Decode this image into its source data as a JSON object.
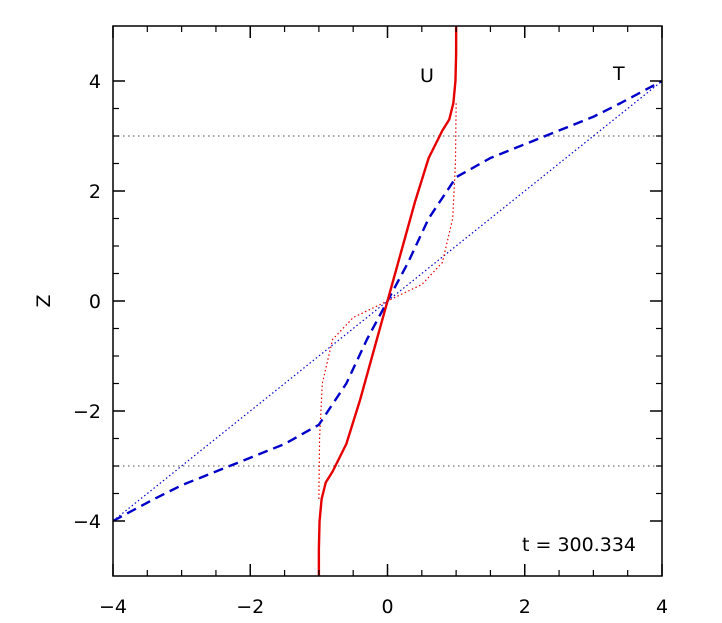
{
  "chart_data": {
    "type": "line",
    "title": "",
    "xlabel": "",
    "ylabel": "Z",
    "xlim": [
      -4,
      4
    ],
    "ylim": [
      -5,
      5
    ],
    "x_ticks": [
      "−4",
      "−2",
      "0",
      "2",
      "4"
    ],
    "y_ticks": [
      "−4",
      "−2",
      "0",
      "2",
      "4"
    ],
    "grid": false,
    "legend": "none",
    "annotations": {
      "U": "U",
      "T": "T",
      "time": "t = 300.334"
    },
    "reference_lines": [
      {
        "name": "",
        "orientation": "horizontal",
        "y": 3,
        "style": "dotted",
        "color": "#888888"
      },
      {
        "name": "",
        "orientation": "horizontal",
        "y": -3,
        "style": "dotted",
        "color": "#888888"
      }
    ],
    "series": [
      {
        "name": "U",
        "style": "solid",
        "color": "#e60000",
        "points": [
          [
            -1.0,
            -5.0
          ],
          [
            -1.0,
            -4.5
          ],
          [
            -0.99,
            -4.0
          ],
          [
            -0.96,
            -3.6
          ],
          [
            -0.9,
            -3.3
          ],
          [
            -0.8,
            -3.1
          ],
          [
            -0.6,
            -2.6
          ],
          [
            -0.4,
            -1.8
          ],
          [
            -0.2,
            -0.9
          ],
          [
            0.0,
            0.0
          ],
          [
            0.2,
            0.9
          ],
          [
            0.4,
            1.8
          ],
          [
            0.6,
            2.6
          ],
          [
            0.8,
            3.1
          ],
          [
            0.9,
            3.3
          ],
          [
            0.96,
            3.6
          ],
          [
            0.99,
            4.0
          ],
          [
            1.0,
            4.5
          ],
          [
            1.0,
            5.0
          ]
        ]
      },
      {
        "name": "U initial",
        "style": "dotted",
        "color": "#e60000",
        "points": [
          [
            -1.0,
            -3.6
          ],
          [
            -0.99,
            -2.5
          ],
          [
            -0.95,
            -1.5
          ],
          [
            -0.8,
            -0.7
          ],
          [
            -0.5,
            -0.3
          ],
          [
            0.0,
            0.0
          ],
          [
            0.5,
            0.3
          ],
          [
            0.8,
            0.7
          ],
          [
            0.95,
            1.5
          ],
          [
            0.99,
            2.5
          ],
          [
            1.0,
            3.6
          ]
        ]
      },
      {
        "name": "T",
        "style": "dashed",
        "color": "#0000c8",
        "points": [
          [
            -4.0,
            -4.0
          ],
          [
            -3.4,
            -3.6
          ],
          [
            -3.0,
            -3.35
          ],
          [
            -2.5,
            -3.1
          ],
          [
            -2.0,
            -2.85
          ],
          [
            -1.5,
            -2.6
          ],
          [
            -1.0,
            -2.25
          ],
          [
            -0.6,
            -1.5
          ],
          [
            -0.3,
            -0.7
          ],
          [
            0.0,
            0.0
          ],
          [
            0.3,
            0.7
          ],
          [
            0.6,
            1.5
          ],
          [
            1.0,
            2.25
          ],
          [
            1.5,
            2.6
          ],
          [
            2.0,
            2.85
          ],
          [
            2.5,
            3.1
          ],
          [
            3.0,
            3.35
          ],
          [
            3.4,
            3.6
          ],
          [
            4.0,
            4.0
          ]
        ]
      },
      {
        "name": "T initial",
        "style": "dotted",
        "color": "#0000c8",
        "points": [
          [
            -4.0,
            -4.0
          ],
          [
            4.0,
            4.0
          ]
        ]
      }
    ]
  }
}
